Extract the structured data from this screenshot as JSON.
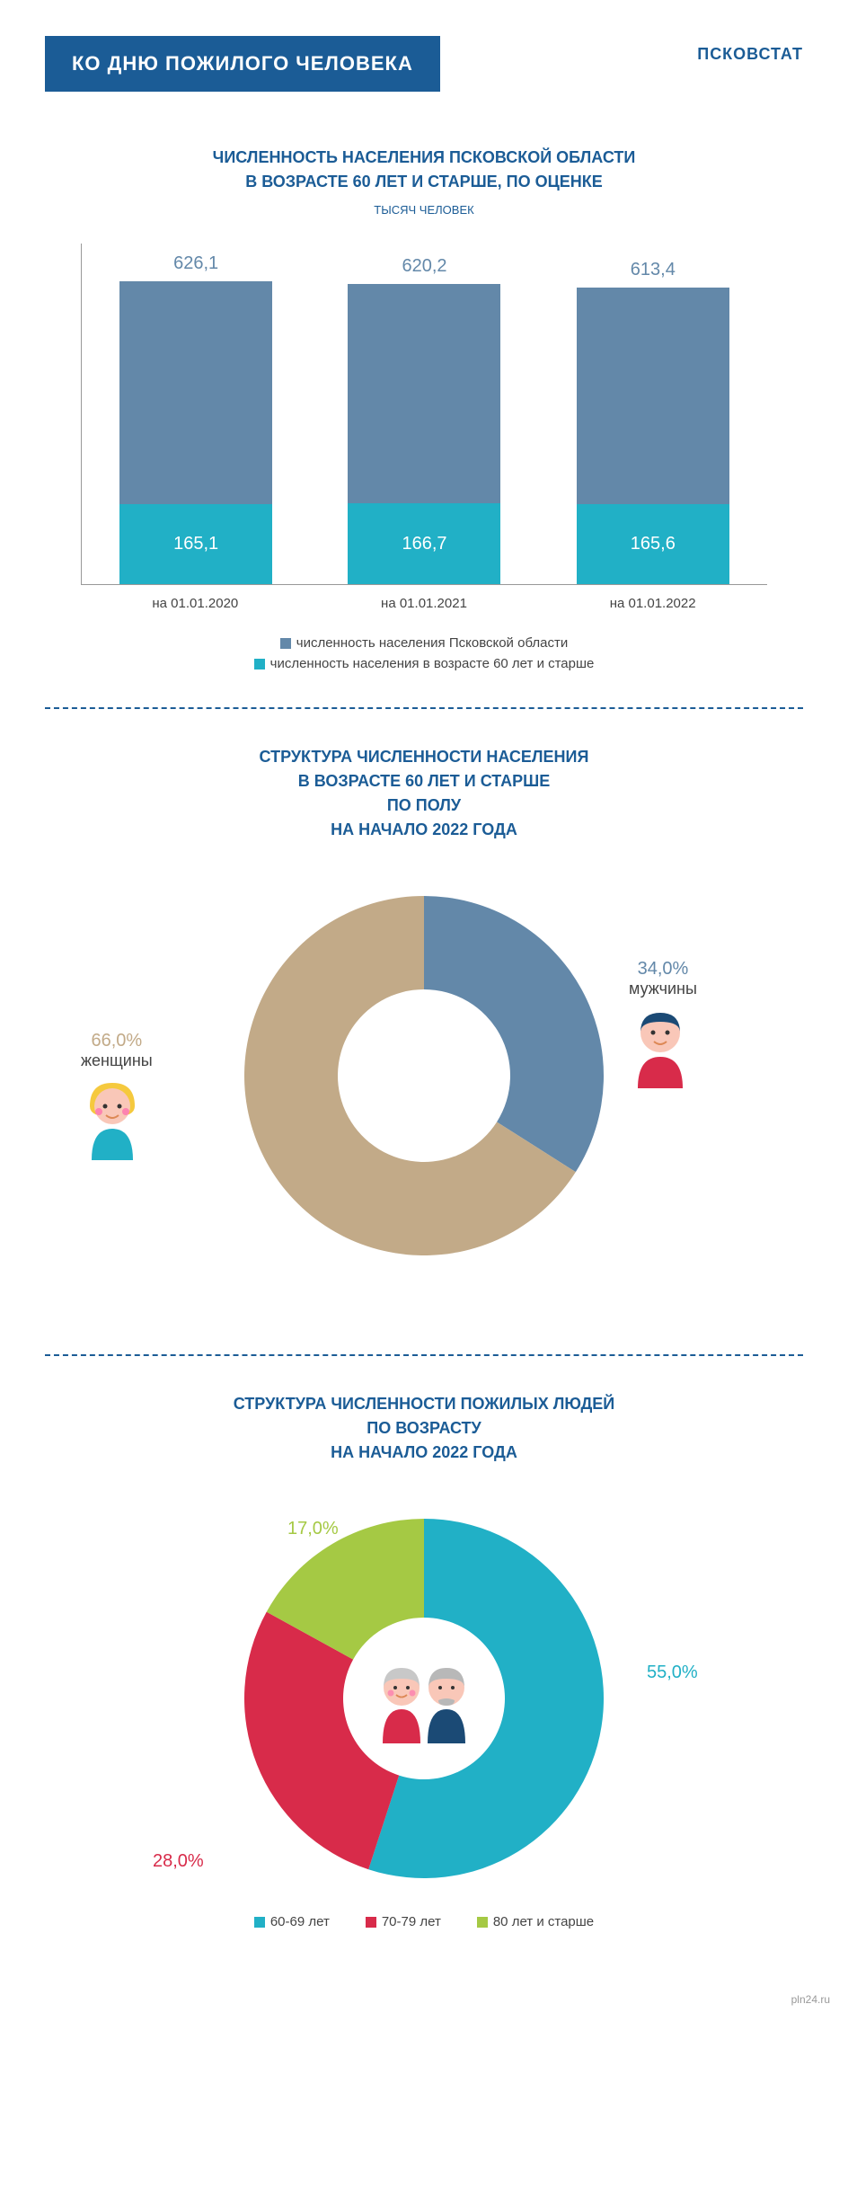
{
  "header": {
    "title": "КО ДНЮ ПОЖИЛОГО ЧЕЛОВЕКА",
    "brand": "ПСКОВСТАТ"
  },
  "bar_chart": {
    "title_lines": [
      "ЧИСЛЕННОСТЬ НАСЕЛЕНИЯ ПСКОВСКОЙ ОБЛАСТИ",
      "В ВОЗРАСТЕ 60 ЛЕТ И СТАРШЕ, ПО ОЦЕНКЕ"
    ],
    "subtitle": "ТЫСЯЧ ЧЕЛОВЕК",
    "type": "stacked-bar",
    "ylim_max": 650,
    "categories": [
      "на 01.01.2020",
      "на 01.01.2021",
      "на 01.01.2022"
    ],
    "total_values": [
      "626,1",
      "620,2",
      "613,4"
    ],
    "elder_values": [
      "165,1",
      "166,7",
      "165,6"
    ],
    "total_heights": [
      626.1,
      620.2,
      613.4
    ],
    "elder_heights": [
      165.1,
      166.7,
      165.6
    ],
    "top_color": "#6388a9",
    "bottom_color": "#21b0c6",
    "legend": [
      {
        "color": "#6388a9",
        "label": "численность населения Псковской области"
      },
      {
        "color": "#21b0c6",
        "label": "численность населения в возрасте 60 лет и старше"
      }
    ]
  },
  "gender_donut": {
    "title_lines": [
      "СТРУКТУРА ЧИСЛЕННОСТИ НАСЕЛЕНИЯ",
      "В ВОЗРАСТЕ 60 ЛЕТ И СТАРШЕ",
      "ПО ПОЛУ",
      "НА НАЧАЛО 2022 ГОДА"
    ],
    "type": "donut",
    "slices": [
      {
        "label": "мужчины",
        "pct_label": "34,0%",
        "value": 34.0,
        "color": "#6388a9"
      },
      {
        "label": "женщины",
        "pct_label": "66,0%",
        "value": 66.0,
        "color": "#c2aa88"
      }
    ],
    "inner_radius_ratio": 0.48,
    "background": "#ffffff"
  },
  "age_donut": {
    "title_lines": [
      "СТРУКТУРА ЧИСЛЕННОСТИ ПОЖИЛЫХ ЛЮДЕЙ",
      "ПО ВОЗРАСТУ",
      "НА НАЧАЛО 2022 ГОДА"
    ],
    "type": "donut",
    "slices": [
      {
        "label": "60-69 лет",
        "pct_label": "55,0%",
        "value": 55.0,
        "color": "#21b0c6"
      },
      {
        "label": "70-79 лет",
        "pct_label": "28,0%",
        "value": 28.0,
        "color": "#d82b4a"
      },
      {
        "label": "80 лет и старше",
        "pct_label": "17,0%",
        "value": 17.0,
        "color": "#a5c944"
      }
    ],
    "inner_radius_ratio": 0.45,
    "background": "#ffffff"
  },
  "footer": "pln24.ru"
}
